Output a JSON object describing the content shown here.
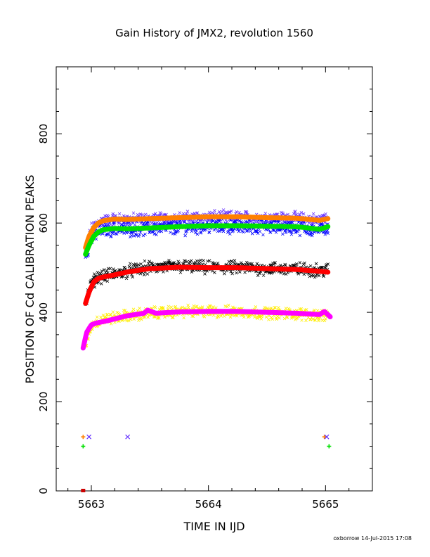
{
  "chart_data": {
    "type": "scatter",
    "title": "Gain History of JMX2, revolution 1560",
    "xlabel": "TIME IN IJD",
    "ylabel": "POSITION OF Cd CALIBRATION PEAKS",
    "xlim": [
      5662.7,
      5665.4
    ],
    "ylim": [
      0,
      950
    ],
    "xticks": [
      5663,
      5664,
      5665
    ],
    "xtick_labels": [
      "5663",
      "5664",
      "5665"
    ],
    "yticks": [
      0,
      200,
      400,
      600,
      800
    ],
    "ytick_labels": [
      "0",
      "200",
      "400",
      "600",
      "800"
    ],
    "grid": false,
    "legend": "none",
    "footer": "oxborrow 14-Jul-2015 17:08",
    "series": [
      {
        "color": "#6633ff",
        "marker": "x",
        "x": [
          5662.95,
          5663.0,
          5663.05,
          5663.1,
          5663.2,
          5663.3,
          5663.5,
          5663.75,
          5664.0,
          5664.25,
          5664.5,
          5664.75,
          5664.95,
          5665.02
        ],
        "y": [
          535,
          585,
          600,
          605,
          608,
          607,
          608,
          610,
          613,
          612,
          611,
          610,
          606,
          612
        ],
        "scatter": 11
      },
      {
        "color": "#0000ff",
        "marker": "x",
        "x": [
          5662.95,
          5663.0,
          5663.05,
          5663.1,
          5663.2,
          5663.3,
          5663.5,
          5663.75,
          5664.0,
          5664.25,
          5664.5,
          5664.75,
          5664.95,
          5665.02
        ],
        "y": [
          525,
          565,
          580,
          585,
          587,
          586,
          588,
          590,
          593,
          592,
          591,
          590,
          585,
          590
        ],
        "scatter": 12
      },
      {
        "color": "#ff8000",
        "marker": "line",
        "x": [
          5662.95,
          5662.98,
          5663.02,
          5663.06,
          5663.1,
          5663.2,
          5663.3,
          5663.5,
          5663.75,
          5664.0,
          5664.25,
          5664.5,
          5664.75,
          5664.95,
          5665.02
        ],
        "y": [
          545,
          570,
          590,
          600,
          605,
          609,
          608,
          610,
          612,
          614,
          614,
          612,
          611,
          606,
          610
        ],
        "scatter": 0
      },
      {
        "color": "#00e000",
        "marker": "line",
        "x": [
          5662.95,
          5662.98,
          5663.02,
          5663.06,
          5663.1,
          5663.2,
          5663.3,
          5663.5,
          5663.75,
          5664.0,
          5664.25,
          5664.5,
          5664.75,
          5664.95,
          5665.02
        ],
        "y": [
          530,
          550,
          570,
          580,
          585,
          588,
          587,
          589,
          592,
          594,
          594,
          593,
          592,
          586,
          592
        ],
        "scatter": 0
      },
      {
        "color": "#000000",
        "marker": "x",
        "x": [
          5662.95,
          5663.0,
          5663.05,
          5663.1,
          5663.2,
          5663.3,
          5663.5,
          5663.75,
          5664.0,
          5664.25,
          5664.5,
          5664.75,
          5664.95,
          5665.02
        ],
        "y": [
          420,
          465,
          478,
          482,
          485,
          492,
          500,
          503,
          500,
          500,
          498,
          497,
          494,
          495
        ],
        "scatter": 11
      },
      {
        "color": "#ff0000",
        "marker": "line",
        "x": [
          5662.95,
          5662.98,
          5663.02,
          5663.06,
          5663.1,
          5663.2,
          5663.3,
          5663.5,
          5663.75,
          5664.0,
          5664.25,
          5664.5,
          5664.75,
          5664.95,
          5665.02
        ],
        "y": [
          420,
          445,
          468,
          476,
          479,
          484,
          490,
          498,
          501,
          500,
          500,
          498,
          496,
          492,
          490
        ],
        "scatter": 0
      },
      {
        "color": "#ffee00",
        "marker": "x",
        "x": [
          5662.95,
          5663.0,
          5663.05,
          5663.1,
          5663.2,
          5663.3,
          5663.5,
          5663.75,
          5664.0,
          5664.25,
          5664.5,
          5664.75,
          5664.95,
          5665.02
        ],
        "y": [
          325,
          370,
          380,
          384,
          388,
          392,
          398,
          402,
          402,
          401,
          399,
          396,
          394,
          395
        ],
        "scatter": 10
      },
      {
        "color": "#ff00ff",
        "marker": "line",
        "x": [
          5662.93,
          5662.96,
          5663.0,
          5663.04,
          5663.08,
          5663.15,
          5663.3,
          5663.45,
          5663.48,
          5663.55,
          5663.75,
          5664.0,
          5664.25,
          5664.5,
          5664.75,
          5664.95,
          5664.99,
          5665.04
        ],
        "y": [
          320,
          355,
          372,
          376,
          378,
          382,
          392,
          398,
          405,
          398,
          401,
          402,
          402,
          400,
          398,
          395,
          402,
          390
        ],
        "scatter": 0
      },
      {
        "color": "#ff8000",
        "marker": "+",
        "x": [
          5662.93,
          5664.99
        ],
        "y": [
          121,
          121
        ],
        "scatter": 0
      },
      {
        "color": "#6633ff",
        "marker": "x",
        "x": [
          5662.98,
          5663.31,
          5665.01
        ],
        "y": [
          121,
          121,
          121
        ],
        "scatter": 0
      },
      {
        "color": "#00e000",
        "marker": "+",
        "x": [
          5662.93,
          5665.03
        ],
        "y": [
          100,
          100
        ],
        "scatter": 0
      },
      {
        "color": "#cc0000",
        "marker": "square",
        "x": [
          5662.93
        ],
        "y": [
          0
        ],
        "scatter": 0
      }
    ]
  }
}
